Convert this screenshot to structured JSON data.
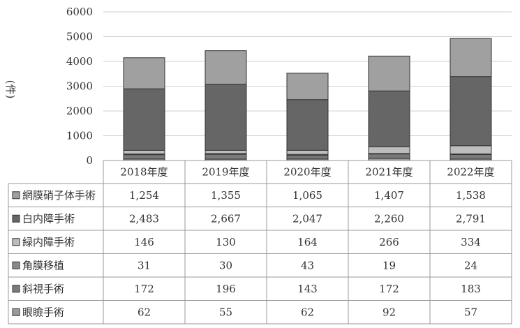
{
  "chart_data": {
    "type": "bar",
    "stacked": true,
    "title": "",
    "xlabel": "",
    "ylabel": "(件)",
    "ylim": [
      0,
      6000
    ],
    "yticks": [
      0,
      1000,
      2000,
      3000,
      4000,
      5000,
      6000
    ],
    "grid": true,
    "legend_placement": "table-rows",
    "categories": [
      "2018年度",
      "2019年度",
      "2020年度",
      "2021年度",
      "2022年度"
    ],
    "series": [
      {
        "name": "網膜硝子体手術",
        "color": "#a0a0a0",
        "values": [
          1254,
          1355,
          1065,
          1407,
          1538
        ],
        "labels": [
          "1,254",
          "1,355",
          "1,065",
          "1,407",
          "1,538"
        ]
      },
      {
        "name": "白内障手術",
        "color": "#666666",
        "values": [
          2483,
          2667,
          2047,
          2260,
          2791
        ],
        "labels": [
          "2,483",
          "2,667",
          "2,047",
          "2,260",
          "2,791"
        ]
      },
      {
        "name": "緑内障手術",
        "color": "#bdbdbd",
        "values": [
          146,
          130,
          164,
          266,
          334
        ],
        "labels": [
          "146",
          "130",
          "164",
          "266",
          "334"
        ]
      },
      {
        "name": "角膜移植",
        "color": "#8a8a8a",
        "values": [
          31,
          30,
          43,
          19,
          24
        ],
        "labels": [
          "31",
          "30",
          "43",
          "19",
          "24"
        ]
      },
      {
        "name": "斜視手術",
        "color": "#7a7a7a",
        "values": [
          172,
          196,
          143,
          172,
          183
        ],
        "labels": [
          "172",
          "196",
          "143",
          "172",
          "183"
        ]
      },
      {
        "name": "眼瞼手術",
        "color": "#9a9a9a",
        "values": [
          62,
          55,
          62,
          92,
          57
        ],
        "labels": [
          "62",
          "55",
          "62",
          "92",
          "57"
        ]
      }
    ]
  }
}
